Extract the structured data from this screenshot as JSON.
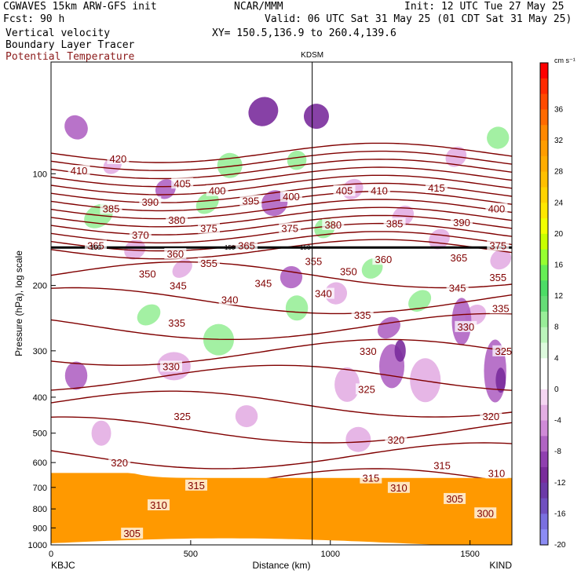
{
  "header": {
    "line1_left": "CGWAVES 15km ARW-GFS init",
    "line1_center": "NCAR/MMM",
    "line1_right": "Init: 12 UTC Tue 27 May 25",
    "line2_left": "Fcst:   90 h",
    "line2_right": "Valid: 06 UTC Sat 31 May 25 (01 CDT Sat 31 May 25)",
    "line3_left": "Vertical velocity",
    "line3_right": "XY= 150.5,136.9 to 260.4,139.6",
    "line4_left": "Boundary Layer Tracer",
    "line5_left": "Potential Temperature"
  },
  "colors": {
    "theta_contour": "#800000",
    "title_red": "#8b1a1a",
    "terrain": "#ff9900"
  },
  "chart_data": {
    "type": "heatmap",
    "title": "",
    "xlabel": "Distance (km)",
    "ylabel": "Pressure (hPa), log scale",
    "xlim": [
      0,
      1650
    ],
    "ylim": [
      1000,
      50
    ],
    "y_scale": "log",
    "x_ticks": [
      0,
      500,
      1000,
      1500
    ],
    "x_tick_labels": [
      "0",
      "500",
      "1000",
      "1500"
    ],
    "y_ticks": [
      100,
      200,
      300,
      400,
      500,
      600,
      700,
      800,
      900,
      1000
    ],
    "y_tick_labels": [
      "100",
      "200",
      "300",
      "400",
      "500",
      "600",
      "700",
      "800",
      "900",
      "1000"
    ],
    "station_left": "KBJC",
    "station_right": "KIND",
    "station_marker": {
      "label": "KDSM",
      "x": 935
    },
    "colorbar": {
      "unit": "cm s⁻¹",
      "tick_labels": [
        "36",
        "32",
        "28",
        "24",
        "20",
        "16",
        "12",
        "8",
        "4",
        "0",
        "-4",
        "-8",
        "-12",
        "-16",
        "-20"
      ],
      "levels": [
        40,
        38,
        36,
        34,
        32,
        30,
        28,
        26,
        24,
        22,
        20,
        18,
        16,
        14,
        12,
        10,
        8,
        6,
        4,
        2,
        0,
        -2,
        -4,
        -6,
        -8,
        -10,
        -12,
        -14,
        -16,
        -18,
        -20
      ],
      "colors": [
        "#ff0000",
        "#ff2a00",
        "#ff4a00",
        "#ff6a00",
        "#ff8800",
        "#ff9d00",
        "#ffad00",
        "#ffc000",
        "#ffd400",
        "#ffe800",
        "#f2ff00",
        "#c8ff00",
        "#96ff30",
        "#66ee55",
        "#4ddd66",
        "#66dd77",
        "#99ee99",
        "#bbf5bb",
        "#ddfadd",
        "#ffffff",
        "#ffffff",
        "#f5d6f2",
        "#e3aee3",
        "#d08bd8",
        "#b064c3",
        "#9040b0",
        "#7a2c9c",
        "#6c3aa8",
        "#7050c0",
        "#7a70e0",
        "#8c8cf4"
      ]
    },
    "theta_contours": [
      {
        "value": "300",
        "label_x": 1555,
        "label_p": 820
      },
      {
        "value": "305",
        "label_x": 1445,
        "label_p": 750
      },
      {
        "value": "305",
        "label_x": 290,
        "label_p": 930
      },
      {
        "value": "310",
        "label_x": 385,
        "label_p": 780
      },
      {
        "value": "310",
        "label_x": 1595,
        "label_p": 640
      },
      {
        "value": "310",
        "label_x": 1245,
        "label_p": 700
      },
      {
        "value": "315",
        "label_x": 520,
        "label_p": 690
      },
      {
        "value": "315",
        "label_x": 1145,
        "label_p": 660
      },
      {
        "value": "315",
        "label_x": 1400,
        "label_p": 610
      },
      {
        "value": "320",
        "label_x": 245,
        "label_p": 600
      },
      {
        "value": "320",
        "label_x": 1235,
        "label_p": 520
      },
      {
        "value": "320",
        "label_x": 1575,
        "label_p": 450
      },
      {
        "value": "325",
        "label_x": 470,
        "label_p": 450
      },
      {
        "value": "325",
        "label_x": 1130,
        "label_p": 380
      },
      {
        "value": "325",
        "label_x": 1620,
        "label_p": 300
      },
      {
        "value": "330",
        "label_x": 430,
        "label_p": 330
      },
      {
        "value": "330",
        "label_x": 1135,
        "label_p": 300
      },
      {
        "value": "330",
        "label_x": 1485,
        "label_p": 258
      },
      {
        "value": "335",
        "label_x": 450,
        "label_p": 252
      },
      {
        "value": "335",
        "label_x": 1115,
        "label_p": 240
      },
      {
        "value": "335",
        "label_x": 1610,
        "label_p": 230
      },
      {
        "value": "340",
        "label_x": 640,
        "label_p": 218
      },
      {
        "value": "340",
        "label_x": 975,
        "label_p": 210
      },
      {
        "value": "345",
        "label_x": 455,
        "label_p": 200
      },
      {
        "value": "345",
        "label_x": 760,
        "label_p": 197
      },
      {
        "value": "345",
        "label_x": 1455,
        "label_p": 203
      },
      {
        "value": "350",
        "label_x": 345,
        "label_p": 186
      },
      {
        "value": "350",
        "label_x": 1065,
        "label_p": 183
      },
      {
        "value": "355",
        "label_x": 565,
        "label_p": 174
      },
      {
        "value": "355",
        "label_x": 940,
        "label_p": 172
      },
      {
        "value": "355",
        "label_x": 1600,
        "label_p": 190
      },
      {
        "value": "360",
        "label_x": 445,
        "label_p": 164
      },
      {
        "value": "360",
        "label_x": 1190,
        "label_p": 170
      },
      {
        "value": "365",
        "label_x": 160,
        "label_p": 156
      },
      {
        "value": "365",
        "label_x": 700,
        "label_p": 156
      },
      {
        "value": "365",
        "label_x": 1460,
        "label_p": 168
      },
      {
        "value": "370",
        "label_x": 320,
        "label_p": 146
      },
      {
        "value": "375",
        "label_x": 565,
        "label_p": 140
      },
      {
        "value": "375",
        "label_x": 855,
        "label_p": 140
      },
      {
        "value": "375",
        "label_x": 1600,
        "label_p": 156
      },
      {
        "value": "380",
        "label_x": 450,
        "label_p": 133
      },
      {
        "value": "380",
        "label_x": 1010,
        "label_p": 137
      },
      {
        "value": "385",
        "label_x": 215,
        "label_p": 124
      },
      {
        "value": "385",
        "label_x": 1230,
        "label_p": 136
      },
      {
        "value": "390",
        "label_x": 355,
        "label_p": 119
      },
      {
        "value": "390",
        "label_x": 1470,
        "label_p": 135
      },
      {
        "value": "395",
        "label_x": 715,
        "label_p": 118
      },
      {
        "value": "400",
        "label_x": 595,
        "label_p": 111
      },
      {
        "value": "400",
        "label_x": 860,
        "label_p": 115
      },
      {
        "value": "400",
        "label_x": 1595,
        "label_p": 124
      },
      {
        "value": "405",
        "label_x": 470,
        "label_p": 106
      },
      {
        "value": "405",
        "label_x": 1050,
        "label_p": 111
      },
      {
        "value": "410",
        "label_x": 100,
        "label_p": 98
      },
      {
        "value": "410",
        "label_x": 1175,
        "label_p": 111
      },
      {
        "value": "415",
        "label_x": 1380,
        "label_p": 109
      },
      {
        "value": "420",
        "label_x": 240,
        "label_p": 91
      }
    ],
    "tracer_contour": {
      "value": "150",
      "label_positions_x": [
        160,
        640,
        910
      ]
    }
  }
}
